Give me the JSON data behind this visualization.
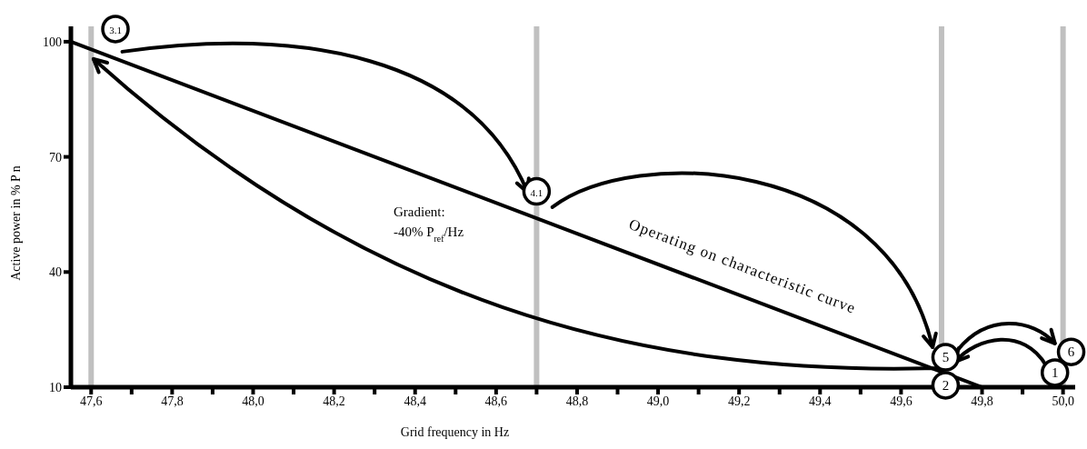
{
  "chart_data": {
    "type": "line",
    "xlabel": "Grid frequency in Hz",
    "ylabel": "Active power in % P n",
    "x": [
      47.55,
      49.8
    ],
    "series": [
      {
        "color": "#000000",
        "values": [
          100,
          10
        ]
      }
    ],
    "xlim": [
      47.55,
      50.03
    ],
    "xticks": [
      {
        "value": 47.6,
        "label": "47,6"
      },
      {
        "value": 47.7,
        "label": null
      },
      {
        "value": 47.8,
        "label": "47,8"
      },
      {
        "value": 47.9,
        "label": null
      },
      {
        "value": 48.0,
        "label": "48,0"
      },
      {
        "value": 48.1,
        "label": null
      },
      {
        "value": 48.2,
        "label": "48,2"
      },
      {
        "value": 48.3,
        "label": null
      },
      {
        "value": 48.4,
        "label": "48,4"
      },
      {
        "value": 48.5,
        "label": null
      },
      {
        "value": 48.6,
        "label": "48,6"
      },
      {
        "value": 48.7,
        "label": null
      },
      {
        "value": 48.8,
        "label": "48,8"
      },
      {
        "value": 48.9,
        "label": null
      },
      {
        "value": 49.0,
        "label": "49,0"
      },
      {
        "value": 49.1,
        "label": null
      },
      {
        "value": 49.2,
        "label": "49,2"
      },
      {
        "value": 49.3,
        "label": null
      },
      {
        "value": 49.4,
        "label": "49,4"
      },
      {
        "value": 49.5,
        "label": null
      },
      {
        "value": 49.6,
        "label": "49,6"
      },
      {
        "value": 49.7,
        "label": null
      },
      {
        "value": 49.8,
        "label": "49,8"
      },
      {
        "value": 49.9,
        "label": null
      },
      {
        "value": 50.0,
        "label": "50,0"
      }
    ],
    "ylim": [
      10,
      104
    ],
    "yticks": [
      10,
      40,
      70,
      100
    ],
    "grid": false,
    "legend": false,
    "marker": "none",
    "line_style": "solid",
    "ref_lines": [
      {
        "axis": "x",
        "value": 47.6,
        "color": "#c0c0c0"
      },
      {
        "axis": "x",
        "value": 48.7,
        "color": "#c0c0c0"
      },
      {
        "axis": "x",
        "value": 49.7,
        "color": "#c0c0c0"
      },
      {
        "axis": "x",
        "value": 50.0,
        "color": "#c0c0c0"
      }
    ],
    "annotations": [
      "Gradient:\n-40% P$_{ref}$/Hz",
      "Operating on characteristic curve",
      {
        "text": "3.1",
        "x": 47.66,
        "y": 103.3
      },
      {
        "text": "4.1",
        "x": 48.7,
        "y": 61
      },
      {
        "text": "5",
        "x": 49.71,
        "y": 17.8
      },
      {
        "text": "2",
        "x": 49.71,
        "y": 10.5
      },
      {
        "text": "1",
        "x": 49.98,
        "y": 13.8
      },
      {
        "text": "6",
        "x": 50.02,
        "y": 19.2
      }
    ]
  }
}
